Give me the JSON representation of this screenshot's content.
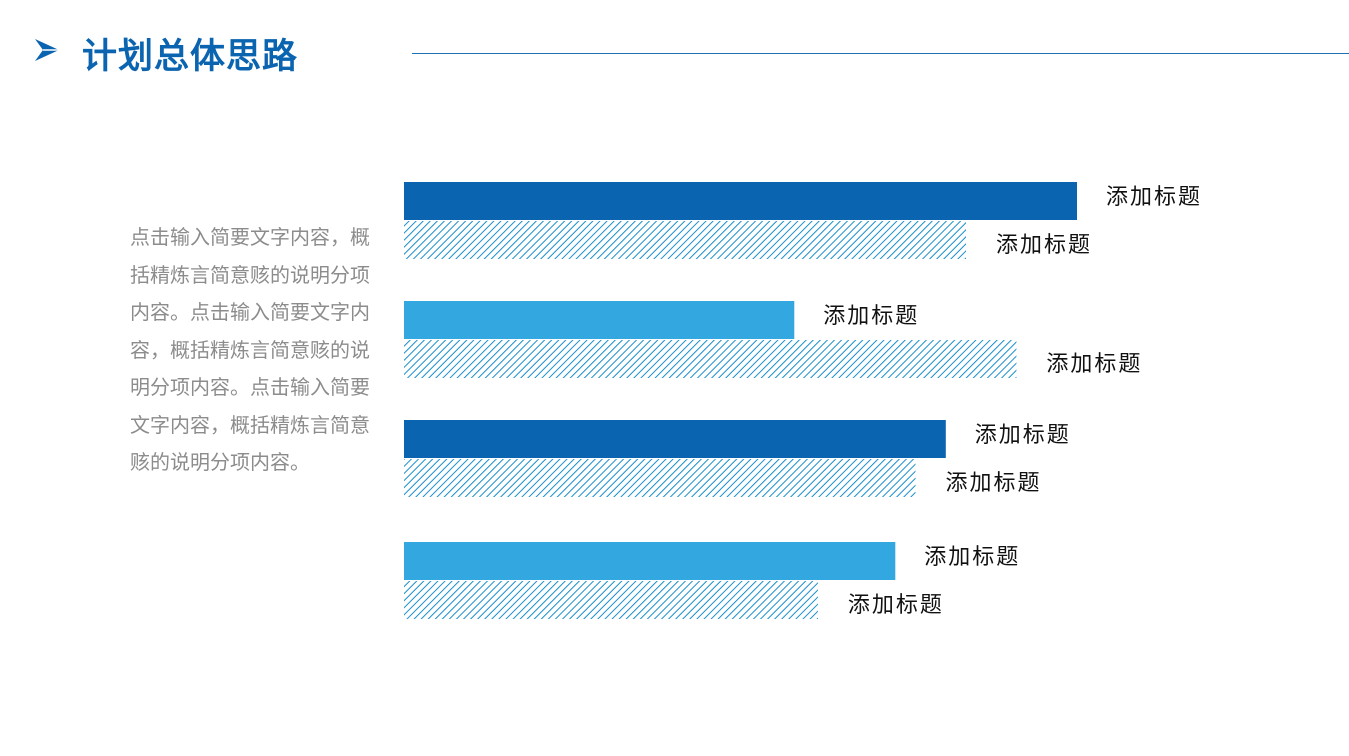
{
  "header": {
    "title": "计划总体思路",
    "arrow_icon": "paper-plane-icon",
    "accent_color": "#0b64b0"
  },
  "description": "点击输入简要文字内容，概括精炼言简意赅的说明分项内容。点击输入简要文字内容，概括精炼言简意赅的说明分项内容。点击输入简要文字内容，概括精炼言简意赅的说明分项内容。",
  "chart_data": {
    "type": "bar",
    "orientation": "horizontal",
    "title": "",
    "xlabel": "",
    "ylabel": "",
    "axes_visible": false,
    "grid": false,
    "xlim": [
      0,
      100
    ],
    "groups": [
      {
        "bars": [
          {
            "label": "添加标题",
            "value": 100,
            "style": "solid",
            "color": "#0b64b0"
          },
          {
            "label": "添加标题",
            "value": 83.5,
            "style": "hatched",
            "color": "#1a8fcc"
          }
        ]
      },
      {
        "bars": [
          {
            "label": "添加标题",
            "value": 58,
            "style": "solid",
            "color": "#33a8e0"
          },
          {
            "label": "添加标题",
            "value": 91,
            "style": "hatched",
            "color": "#1a8fcc"
          }
        ]
      },
      {
        "bars": [
          {
            "label": "添加标题",
            "value": 80.5,
            "style": "solid",
            "color": "#0b64b0"
          },
          {
            "label": "添加标题",
            "value": 76,
            "style": "hatched",
            "color": "#1a8fcc"
          }
        ]
      },
      {
        "bars": [
          {
            "label": "添加标题",
            "value": 73,
            "style": "solid",
            "color": "#33a8e0"
          },
          {
            "label": "添加标题",
            "value": 61.5,
            "style": "hatched",
            "color": "#1a8fcc"
          }
        ]
      }
    ]
  }
}
